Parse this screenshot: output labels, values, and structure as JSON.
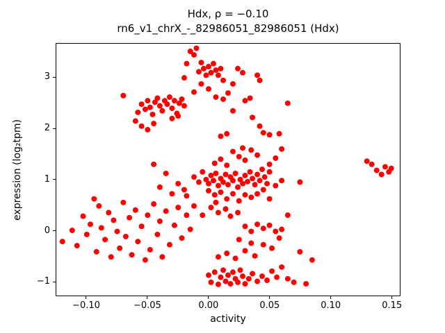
{
  "figure": {
    "title_line1": "Hdx, ρ = −0.10",
    "title_line2": "rn6_v1_chrX_-_82986051_82986051 (Hdx)"
  },
  "chart_data": {
    "type": "scatter",
    "title": "Hdx, ρ = −0.10",
    "subtitle": "rn6_v1_chrX_-_82986051_82986051 (Hdx)",
    "xlabel": "activity",
    "ylabel": "expression (log₂tpm)",
    "xlim": [
      -0.125,
      0.157
    ],
    "ylim": [
      -1.28,
      3.67
    ],
    "xticks": [
      -0.1,
      -0.05,
      0.0,
      0.05,
      0.1,
      0.15
    ],
    "xtick_labels": [
      "−0.10",
      "−0.05",
      "0.00",
      "0.05",
      "0.10",
      "0.15"
    ],
    "yticks": [
      -1,
      0,
      1,
      2,
      3
    ],
    "ytick_labels": [
      "−1",
      "0",
      "1",
      "2",
      "3"
    ],
    "grid": false,
    "legend": null,
    "marker_color": "#ff0000",
    "marker_radius": 4,
    "points": [
      [
        -0.07,
        2.65
      ],
      [
        -0.058,
        2.32
      ],
      [
        -0.055,
        2.48
      ],
      [
        -0.052,
        2.38
      ],
      [
        -0.05,
        2.55
      ],
      [
        -0.048,
        2.42
      ],
      [
        -0.046,
        2.28
      ],
      [
        -0.044,
        2.52
      ],
      [
        -0.042,
        2.6
      ],
      [
        -0.04,
        2.45
      ],
      [
        -0.038,
        2.35
      ],
      [
        -0.036,
        2.55
      ],
      [
        -0.034,
        2.48
      ],
      [
        -0.032,
        2.62
      ],
      [
        -0.03,
        2.4
      ],
      [
        -0.028,
        2.55
      ],
      [
        -0.026,
        2.3
      ],
      [
        -0.024,
        2.5
      ],
      [
        -0.022,
        2.58
      ],
      [
        -0.02,
        2.45
      ],
      [
        -0.06,
        2.15
      ],
      [
        -0.055,
        2.05
      ],
      [
        -0.05,
        1.98
      ],
      [
        -0.045,
        2.1
      ],
      [
        -0.03,
        2.2
      ],
      [
        -0.025,
        2.25
      ],
      [
        -0.02,
        3.0
      ],
      [
        -0.018,
        3.28
      ],
      [
        -0.015,
        3.52
      ],
      [
        -0.012,
        3.45
      ],
      [
        -0.01,
        3.58
      ],
      [
        -0.008,
        3.12
      ],
      [
        -0.006,
        3.3
      ],
      [
        -0.004,
        3.18
      ],
      [
        -0.002,
        3.05
      ],
      [
        0.0,
        3.22
      ],
      [
        0.002,
        3.1
      ],
      [
        0.004,
        3.28
      ],
      [
        0.006,
        3.15
      ],
      [
        0.008,
        3.05
      ],
      [
        0.01,
        3.18
      ],
      [
        0.012,
        2.95
      ],
      [
        -0.012,
        2.72
      ],
      [
        -0.006,
        2.88
      ],
      [
        0.0,
        2.78
      ],
      [
        0.006,
        2.62
      ],
      [
        0.012,
        2.58
      ],
      [
        0.016,
        2.7
      ],
      [
        0.02,
        2.88
      ],
      [
        0.024,
        3.18
      ],
      [
        0.028,
        3.1
      ],
      [
        0.03,
        2.55
      ],
      [
        0.034,
        2.6
      ],
      [
        0.02,
        2.35
      ],
      [
        0.036,
        2.22
      ],
      [
        0.04,
        3.05
      ],
      [
        0.042,
        2.95
      ],
      [
        0.065,
        2.5
      ],
      [
        0.042,
        2.05
      ],
      [
        0.045,
        1.92
      ],
      [
        0.05,
        1.88
      ],
      [
        0.058,
        1.9
      ],
      [
        0.015,
        1.9
      ],
      [
        0.01,
        1.85
      ],
      [
        -0.012,
        1.05
      ],
      [
        -0.008,
        0.95
      ],
      [
        -0.005,
        1.15
      ],
      [
        -0.002,
        1.0
      ],
      [
        0.0,
        0.92
      ],
      [
        0.002,
        1.08
      ],
      [
        0.004,
        0.98
      ],
      [
        0.006,
        1.12
      ],
      [
        0.008,
        0.88
      ],
      [
        0.01,
        1.02
      ],
      [
        0.012,
        0.95
      ],
      [
        0.014,
        1.1
      ],
      [
        0.016,
        0.9
      ],
      [
        0.018,
        1.05
      ],
      [
        0.02,
        0.98
      ],
      [
        0.022,
        1.12
      ],
      [
        0.024,
        0.85
      ],
      [
        0.026,
        1.0
      ],
      [
        0.028,
        0.92
      ],
      [
        0.03,
        1.08
      ],
      [
        0.032,
        0.96
      ],
      [
        0.034,
        1.15
      ],
      [
        0.036,
        1.02
      ],
      [
        0.038,
        0.9
      ],
      [
        0.04,
        1.1
      ],
      [
        0.042,
        0.98
      ],
      [
        0.044,
        1.2
      ],
      [
        0.046,
        1.05
      ],
      [
        0.048,
        0.92
      ],
      [
        0.05,
        1.15
      ],
      [
        0.005,
        1.32
      ],
      [
        0.01,
        1.4
      ],
      [
        0.015,
        1.28
      ],
      [
        0.02,
        1.55
      ],
      [
        0.025,
        1.45
      ],
      [
        0.03,
        1.38
      ],
      [
        0.035,
        1.58
      ],
      [
        0.04,
        1.48
      ],
      [
        0.028,
        1.62
      ],
      [
        0.05,
        1.3
      ],
      [
        0.055,
        1.42
      ],
      [
        0.0,
        0.78
      ],
      [
        0.005,
        0.7
      ],
      [
        0.01,
        0.75
      ],
      [
        0.015,
        0.62
      ],
      [
        0.02,
        0.72
      ],
      [
        0.025,
        0.58
      ],
      [
        0.03,
        0.7
      ],
      [
        0.035,
        0.65
      ],
      [
        0.04,
        0.72
      ],
      [
        0.045,
        0.8
      ],
      [
        0.05,
        0.62
      ],
      [
        0.055,
        0.88
      ],
      [
        0.06,
        0.98
      ],
      [
        0.06,
        1.6
      ],
      [
        -0.02,
        0.8
      ],
      [
        -0.025,
        0.92
      ],
      [
        -0.03,
        0.72
      ],
      [
        -0.035,
        1.12
      ],
      [
        -0.04,
        0.85
      ],
      [
        -0.045,
        1.3
      ],
      [
        -0.018,
        0.68
      ],
      [
        0.075,
        0.95
      ],
      [
        -0.12,
        -0.22
      ],
      [
        -0.112,
        0.0
      ],
      [
        -0.108,
        -0.3
      ],
      [
        -0.103,
        0.28
      ],
      [
        -0.1,
        -0.08
      ],
      [
        -0.097,
        0.12
      ],
      [
        -0.094,
        0.62
      ],
      [
        -0.092,
        -0.42
      ],
      [
        -0.09,
        0.48
      ],
      [
        -0.088,
        0.05
      ],
      [
        -0.085,
        -0.18
      ],
      [
        -0.082,
        0.35
      ],
      [
        -0.08,
        -0.52
      ],
      [
        -0.078,
        0.2
      ],
      [
        -0.075,
        -0.02
      ],
      [
        -0.073,
        -0.35
      ],
      [
        -0.07,
        0.55
      ],
      [
        -0.068,
        -0.12
      ],
      [
        -0.065,
        0.25
      ],
      [
        -0.063,
        -0.48
      ],
      [
        -0.06,
        0.4
      ],
      [
        -0.058,
        -0.22
      ],
      [
        -0.055,
        0.08
      ],
      [
        -0.052,
        -0.58
      ],
      [
        -0.05,
        0.3
      ],
      [
        -0.048,
        -0.38
      ],
      [
        -0.045,
        0.52
      ],
      [
        -0.042,
        -0.08
      ],
      [
        -0.04,
        0.18
      ],
      [
        -0.038,
        -0.52
      ],
      [
        -0.035,
        0.38
      ],
      [
        -0.032,
        -0.28
      ],
      [
        -0.028,
        0.1
      ],
      [
        -0.025,
        0.45
      ],
      [
        -0.022,
        -0.15
      ],
      [
        -0.018,
        0.3
      ],
      [
        -0.015,
        0.02
      ],
      [
        -0.012,
        0.48
      ],
      [
        0.0,
        -0.88
      ],
      [
        0.002,
        -1.02
      ],
      [
        0.005,
        -0.82
      ],
      [
        0.008,
        -1.06
      ],
      [
        0.01,
        -0.92
      ],
      [
        0.012,
        -0.78
      ],
      [
        0.014,
        -1.0
      ],
      [
        0.016,
        -0.88
      ],
      [
        0.018,
        -1.05
      ],
      [
        0.02,
        -0.82
      ],
      [
        0.022,
        -0.95
      ],
      [
        0.024,
        -1.02
      ],
      [
        0.026,
        -0.78
      ],
      [
        0.028,
        -0.9
      ],
      [
        0.03,
        -1.05
      ],
      [
        0.033,
        -0.95
      ],
      [
        0.036,
        -0.85
      ],
      [
        0.04,
        -1.0
      ],
      [
        0.044,
        -0.9
      ],
      [
        0.048,
        -0.98
      ],
      [
        0.052,
        -0.8
      ],
      [
        0.056,
        -0.92
      ],
      [
        0.06,
        -0.72
      ],
      [
        0.065,
        -0.95
      ],
      [
        0.07,
        -1.02
      ],
      [
        0.08,
        -1.05
      ],
      [
        0.085,
        -0.58
      ],
      [
        0.075,
        -0.42
      ],
      [
        0.008,
        -0.52
      ],
      [
        0.015,
        -0.45
      ],
      [
        0.022,
        -0.55
      ],
      [
        0.03,
        -0.4
      ],
      [
        0.038,
        -0.5
      ],
      [
        0.045,
        -0.28
      ],
      [
        0.052,
        -0.35
      ],
      [
        0.058,
        -0.15
      ],
      [
        0.035,
        -0.25
      ],
      [
        0.025,
        -0.18
      ],
      [
        0.03,
        0.08
      ],
      [
        0.035,
        -0.02
      ],
      [
        0.04,
        0.12
      ],
      [
        0.045,
        0.04
      ],
      [
        0.05,
        0.1
      ],
      [
        0.055,
        -0.02
      ],
      [
        0.06,
        0.02
      ],
      [
        0.065,
        0.3
      ],
      [
        0.002,
        0.45
      ],
      [
        0.008,
        0.35
      ],
      [
        0.014,
        0.42
      ],
      [
        0.018,
        0.28
      ],
      [
        0.006,
        0.55
      ],
      [
        0.024,
        0.35
      ],
      [
        -0.005,
        0.3
      ],
      [
        0.13,
        1.36
      ],
      [
        0.134,
        1.3
      ],
      [
        0.138,
        1.18
      ],
      [
        0.142,
        1.1
      ],
      [
        0.145,
        1.25
      ],
      [
        0.148,
        1.15
      ],
      [
        0.15,
        1.22
      ]
    ]
  }
}
